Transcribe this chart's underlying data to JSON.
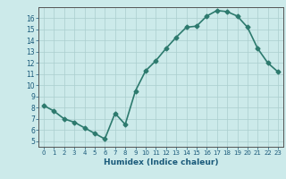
{
  "x": [
    0,
    1,
    2,
    3,
    4,
    5,
    6,
    7,
    8,
    9,
    10,
    11,
    12,
    13,
    14,
    15,
    16,
    17,
    18,
    19,
    20,
    21,
    22,
    23
  ],
  "y": [
    8.2,
    7.7,
    7.0,
    6.7,
    6.2,
    5.7,
    5.2,
    7.5,
    6.5,
    9.5,
    11.3,
    12.2,
    13.3,
    14.3,
    15.2,
    15.3,
    16.2,
    16.7,
    16.6,
    16.2,
    15.2,
    13.3,
    12.0,
    11.2
  ],
  "line_color": "#2d7a6e",
  "marker": "D",
  "marker_size": 2.5,
  "bg_color": "#cceaea",
  "grid_color": "#aacece",
  "xlabel": "Humidex (Indice chaleur)",
  "xlim": [
    -0.5,
    23.5
  ],
  "ylim": [
    4.5,
    17.0
  ],
  "yticks": [
    5,
    6,
    7,
    8,
    9,
    10,
    11,
    12,
    13,
    14,
    15,
    16
  ],
  "xticks": [
    0,
    1,
    2,
    3,
    4,
    5,
    6,
    7,
    8,
    9,
    10,
    11,
    12,
    13,
    14,
    15,
    16,
    17,
    18,
    19,
    20,
    21,
    22,
    23
  ],
  "font_color": "#1a5a7a",
  "axis_color": "#555555",
  "linewidth": 1.2
}
